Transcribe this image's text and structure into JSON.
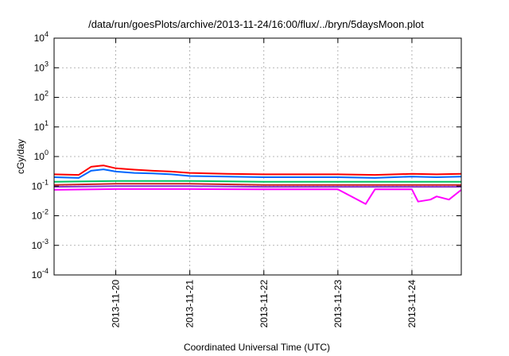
{
  "chart_data": {
    "type": "line",
    "title": "/data/run/goesPlots/archive/2013-11-24/16:00/flux/../bryn/5daysMoon.plot",
    "xlabel": "Coordinated Universal Time (UTC)",
    "ylabel": "cGy/day",
    "yscale": "log",
    "ylim": [
      0.0001,
      10000
    ],
    "xlim": [
      "2013-11-19T04:00",
      "2013-11-24T16:00"
    ],
    "y_ticks": [
      {
        "value": 0.0001,
        "base": "10",
        "exp": "-4"
      },
      {
        "value": 0.001,
        "base": "10",
        "exp": "-3"
      },
      {
        "value": 0.01,
        "base": "10",
        "exp": "-2"
      },
      {
        "value": 0.1,
        "base": "10",
        "exp": "-1"
      },
      {
        "value": 1,
        "base": "10",
        "exp": "0"
      },
      {
        "value": 10,
        "base": "10",
        "exp": "1"
      },
      {
        "value": 100,
        "base": "10",
        "exp": "2"
      },
      {
        "value": 1000,
        "base": "10",
        "exp": "3"
      },
      {
        "value": 10000,
        "base": "10",
        "exp": "4"
      }
    ],
    "x_ticks": [
      {
        "value": "2013-11-20T00:00",
        "label": "2013-11-20"
      },
      {
        "value": "2013-11-21T00:00",
        "label": "2013-11-21"
      },
      {
        "value": "2013-11-22T00:00",
        "label": "2013-11-22"
      },
      {
        "value": "2013-11-23T00:00",
        "label": "2013-11-23"
      },
      {
        "value": "2013-11-24T00:00",
        "label": "2013-11-24"
      }
    ],
    "grid": true,
    "series": [
      {
        "color": "#ff0000",
        "x": [
          "2013-11-19T04:00",
          "2013-11-19T12:00",
          "2013-11-19T16:00",
          "2013-11-19T20:00",
          "2013-11-20T00:00",
          "2013-11-20T06:00",
          "2013-11-20T12:00",
          "2013-11-20T18:00",
          "2013-11-21T00:00",
          "2013-11-21T12:00",
          "2013-11-22T00:00",
          "2013-11-22T12:00",
          "2013-11-23T00:00",
          "2013-11-23T12:00",
          "2013-11-24T00:00",
          "2013-11-24T08:00",
          "2013-11-24T16:00"
        ],
        "values": [
          0.25,
          0.24,
          0.45,
          0.5,
          0.4,
          0.36,
          0.33,
          0.31,
          0.28,
          0.26,
          0.25,
          0.25,
          0.25,
          0.24,
          0.26,
          0.25,
          0.26
        ]
      },
      {
        "color": "#0066ff",
        "x": [
          "2013-11-19T04:00",
          "2013-11-19T12:00",
          "2013-11-19T16:00",
          "2013-11-19T20:00",
          "2013-11-20T00:00",
          "2013-11-20T06:00",
          "2013-11-20T12:00",
          "2013-11-20T18:00",
          "2013-11-21T00:00",
          "2013-11-21T12:00",
          "2013-11-22T00:00",
          "2013-11-22T12:00",
          "2013-11-23T00:00",
          "2013-11-23T12:00",
          "2013-11-24T00:00",
          "2013-11-24T08:00",
          "2013-11-24T16:00"
        ],
        "values": [
          0.2,
          0.19,
          0.33,
          0.37,
          0.31,
          0.28,
          0.27,
          0.25,
          0.22,
          0.21,
          0.2,
          0.2,
          0.2,
          0.19,
          0.21,
          0.2,
          0.21
        ]
      },
      {
        "color": "#00c060",
        "x": [
          "2013-11-19T04:00",
          "2013-11-20T00:00",
          "2013-11-21T00:00",
          "2013-11-22T00:00",
          "2013-11-23T00:00",
          "2013-11-24T00:00",
          "2013-11-24T16:00"
        ],
        "values": [
          0.14,
          0.15,
          0.15,
          0.14,
          0.14,
          0.14,
          0.14
        ]
      },
      {
        "color": "#cc2222",
        "x": [
          "2013-11-19T04:00",
          "2013-11-20T00:00",
          "2013-11-21T00:00",
          "2013-11-22T00:00",
          "2013-11-23T00:00",
          "2013-11-24T00:00",
          "2013-11-24T16:00"
        ],
        "values": [
          0.11,
          0.12,
          0.12,
          0.11,
          0.11,
          0.11,
          0.11
        ]
      },
      {
        "color": "#8833cc",
        "x": [
          "2013-11-19T04:00",
          "2013-11-20T00:00",
          "2013-11-21T00:00",
          "2013-11-22T00:00",
          "2013-11-23T00:00",
          "2013-11-24T00:00",
          "2013-11-24T16:00"
        ],
        "values": [
          0.095,
          0.1,
          0.1,
          0.095,
          0.095,
          0.095,
          0.095
        ]
      },
      {
        "color": "#ff00ff",
        "x": [
          "2013-11-19T04:00",
          "2013-11-20T00:00",
          "2013-11-21T00:00",
          "2013-11-22T00:00",
          "2013-11-23T00:00",
          "2013-11-23T09:00",
          "2013-11-23T12:00",
          "2013-11-24T00:00",
          "2013-11-24T02:00",
          "2013-11-24T06:00",
          "2013-11-24T08:00",
          "2013-11-24T12:00",
          "2013-11-24T16:00"
        ],
        "values": [
          0.075,
          0.08,
          0.08,
          0.078,
          0.078,
          0.025,
          0.078,
          0.078,
          0.03,
          0.035,
          0.045,
          0.035,
          0.075
        ]
      }
    ]
  }
}
